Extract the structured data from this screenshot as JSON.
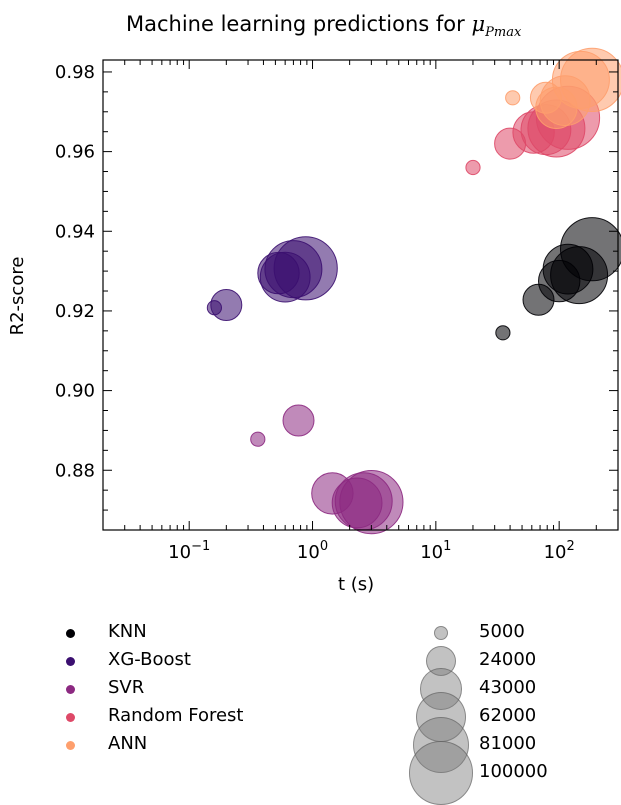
{
  "title_prefix": "Machine learning predictions for ",
  "title_symbol": "μ",
  "title_subscript": "Pmax",
  "chart_data": {
    "type": "scatter",
    "xlabel": "t (s)",
    "ylabel": "R2-score",
    "xscale": "log",
    "xlim": [
      0.02,
      300
    ],
    "ylim": [
      0.865,
      0.983
    ],
    "x_ticks": [
      0.1,
      1,
      10,
      100
    ],
    "x_tick_labels": [
      "10",
      "10",
      "10",
      "10"
    ],
    "x_tick_exponents": [
      "−1",
      "0",
      "1",
      "2"
    ],
    "y_ticks": [
      0.88,
      0.9,
      0.92,
      0.94,
      0.96,
      0.98
    ],
    "y_tick_labels": [
      "0.88",
      "0.90",
      "0.92",
      "0.94",
      "0.96",
      "0.98"
    ],
    "grid": false,
    "series": [
      {
        "name": "KNN",
        "color": "#000004",
        "points": [
          {
            "x": 35,
            "y": 0.9145,
            "size": 5000
          },
          {
            "x": 68,
            "y": 0.9228,
            "size": 24000
          },
          {
            "x": 100,
            "y": 0.9275,
            "size": 43000
          },
          {
            "x": 118,
            "y": 0.9305,
            "size": 62000
          },
          {
            "x": 145,
            "y": 0.929,
            "size": 81000
          },
          {
            "x": 185,
            "y": 0.9355,
            "size": 100000
          }
        ]
      },
      {
        "name": "XG-Boost",
        "color": "#3b0f70",
        "points": [
          {
            "x": 0.16,
            "y": 0.9208,
            "size": 5000
          },
          {
            "x": 0.2,
            "y": 0.9215,
            "size": 24000
          },
          {
            "x": 0.53,
            "y": 0.9295,
            "size": 43000
          },
          {
            "x": 0.6,
            "y": 0.9285,
            "size": 62000
          },
          {
            "x": 0.7,
            "y": 0.9305,
            "size": 81000
          },
          {
            "x": 0.88,
            "y": 0.9307,
            "size": 100000
          }
        ]
      },
      {
        "name": "SVR",
        "color": "#8c2981",
        "points": [
          {
            "x": 0.36,
            "y": 0.8878,
            "size": 5000
          },
          {
            "x": 0.77,
            "y": 0.8925,
            "size": 24000
          },
          {
            "x": 1.45,
            "y": 0.8742,
            "size": 43000
          },
          {
            "x": 2.3,
            "y": 0.8718,
            "size": 62000
          },
          {
            "x": 2.6,
            "y": 0.8722,
            "size": 81000
          },
          {
            "x": 3.0,
            "y": 0.872,
            "size": 100000
          }
        ]
      },
      {
        "name": "Random Forest",
        "color": "#de4968",
        "points": [
          {
            "x": 20,
            "y": 0.956,
            "size": 5000
          },
          {
            "x": 40,
            "y": 0.962,
            "size": 24000
          },
          {
            "x": 62,
            "y": 0.9648,
            "size": 43000
          },
          {
            "x": 78,
            "y": 0.9655,
            "size": 62000
          },
          {
            "x": 95,
            "y": 0.9658,
            "size": 81000
          },
          {
            "x": 118,
            "y": 0.9685,
            "size": 100000
          }
        ]
      },
      {
        "name": "ANN",
        "color": "#fe9f6d",
        "points": [
          {
            "x": 42,
            "y": 0.9735,
            "size": 5000
          },
          {
            "x": 78,
            "y": 0.9735,
            "size": 24000
          },
          {
            "x": 95,
            "y": 0.971,
            "size": 43000
          },
          {
            "x": 112,
            "y": 0.9728,
            "size": 62000
          },
          {
            "x": 150,
            "y": 0.978,
            "size": 81000
          },
          {
            "x": 185,
            "y": 0.978,
            "size": 100000
          }
        ]
      }
    ],
    "size_legend": [
      5000,
      24000,
      43000,
      62000,
      81000,
      100000
    ],
    "size_legend_labels": [
      "5000",
      "24000",
      "43000",
      "62000",
      "81000",
      "100000"
    ]
  }
}
